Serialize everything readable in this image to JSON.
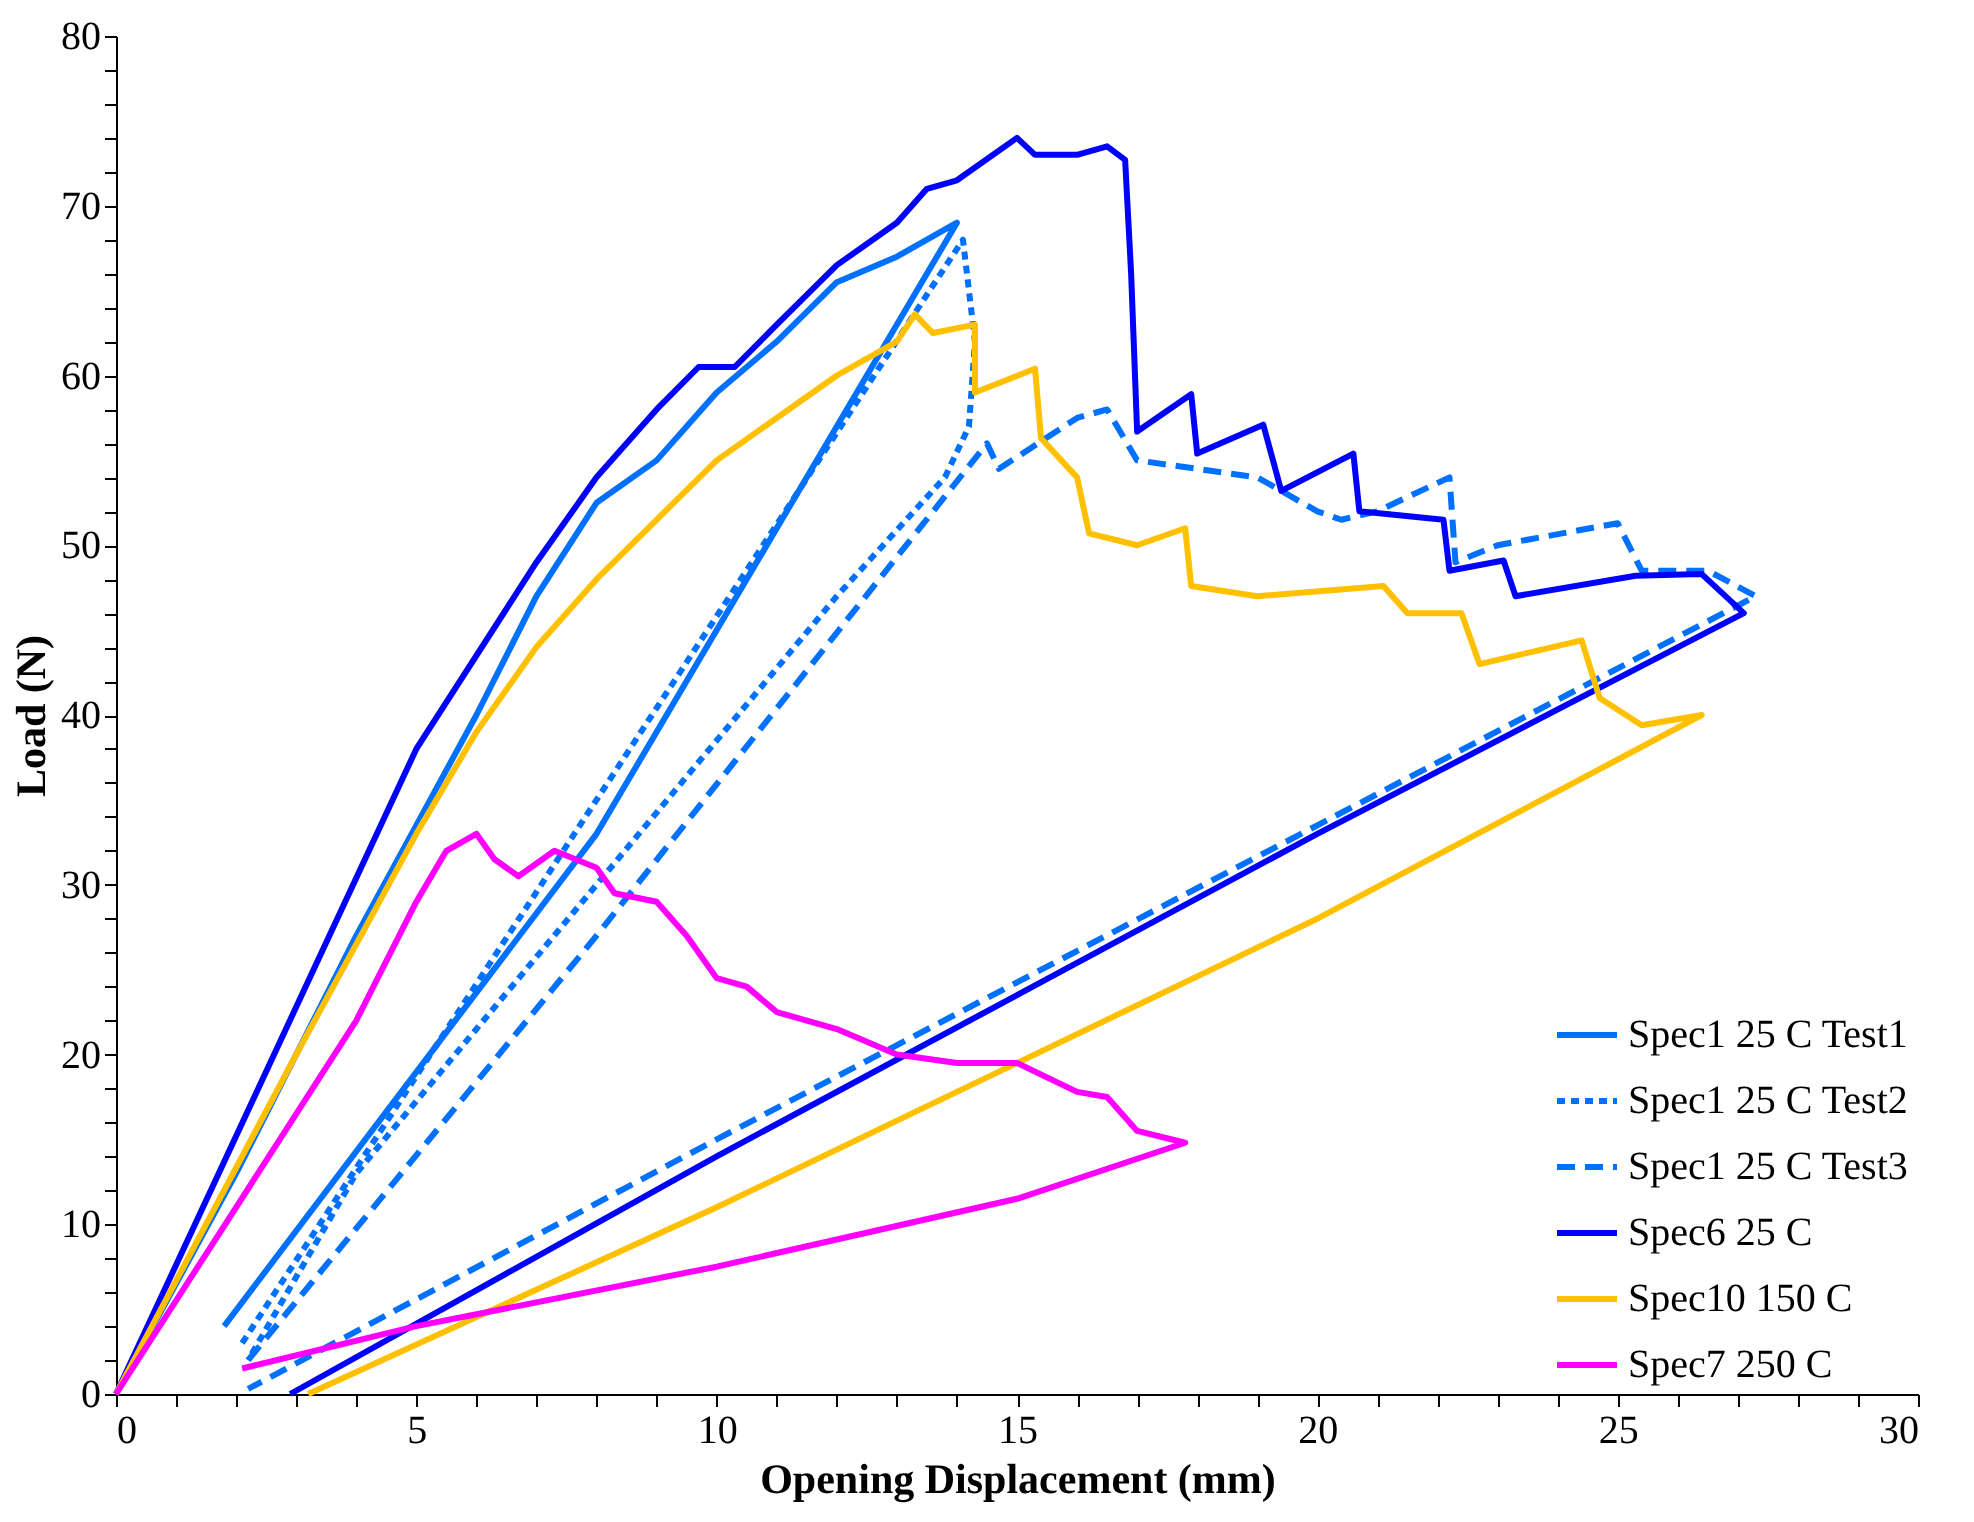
{
  "chart_data": {
    "type": "line",
    "xlabel": "Opening Displacement (mm)",
    "ylabel": "Load (N)",
    "xlim": [
      0,
      30
    ],
    "ylim": [
      0,
      80
    ],
    "xticks": [
      0,
      {
        "value": 1,
        "label": null
      },
      {
        "value": 2,
        "label": null
      },
      {
        "value": 3,
        "label": null
      },
      {
        "value": 4,
        "label": null
      },
      5,
      {
        "value": 6,
        "label": null
      },
      {
        "value": 7,
        "label": null
      },
      {
        "value": 8,
        "label": null
      },
      {
        "value": 9,
        "label": null
      },
      10,
      {
        "value": 11,
        "label": null
      },
      {
        "value": 12,
        "label": null
      },
      {
        "value": 13,
        "label": null
      },
      {
        "value": 14,
        "label": null
      },
      15,
      {
        "value": 16,
        "label": null
      },
      {
        "value": 17,
        "label": null
      },
      {
        "value": 18,
        "label": null
      },
      {
        "value": 19,
        "label": null
      },
      20,
      {
        "value": 21,
        "label": null
      },
      {
        "value": 22,
        "label": null
      },
      {
        "value": 23,
        "label": null
      },
      {
        "value": 24,
        "label": null
      },
      25,
      {
        "value": 26,
        "label": null
      },
      {
        "value": 27,
        "label": null
      },
      {
        "value": 28,
        "label": null
      },
      {
        "value": 29,
        "label": null
      },
      30
    ],
    "yticks": [
      0,
      {
        "value": 2,
        "label": null
      },
      {
        "value": 4,
        "label": null
      },
      {
        "value": 6,
        "label": null
      },
      {
        "value": 8,
        "label": null
      },
      10,
      {
        "value": 12,
        "label": null
      },
      {
        "value": 14,
        "label": null
      },
      {
        "value": 16,
        "label": null
      },
      {
        "value": 18,
        "label": null
      },
      20,
      {
        "value": 22,
        "label": null
      },
      {
        "value": 24,
        "label": null
      },
      {
        "value": 26,
        "label": null
      },
      {
        "value": 28,
        "label": null
      },
      30,
      {
        "value": 32,
        "label": null
      },
      {
        "value": 34,
        "label": null
      },
      {
        "value": 36,
        "label": null
      },
      {
        "value": 38,
        "label": null
      },
      40,
      {
        "value": 42,
        "label": null
      },
      {
        "value": 44,
        "label": null
      },
      {
        "value": 46,
        "label": null
      },
      {
        "value": 48,
        "label": null
      },
      50,
      {
        "value": 52,
        "label": null
      },
      {
        "value": 54,
        "label": null
      },
      {
        "value": 56,
        "label": null
      },
      {
        "value": 58,
        "label": null
      },
      60,
      {
        "value": 62,
        "label": null
      },
      {
        "value": 64,
        "label": null
      },
      {
        "value": 66,
        "label": null
      },
      {
        "value": 68,
        "label": null
      },
      70,
      {
        "value": 72,
        "label": null
      },
      {
        "value": 74,
        "label": null
      },
      {
        "value": 76,
        "label": null
      },
      {
        "value": 78,
        "label": null
      },
      80
    ],
    "grid": false,
    "legend": "bottom right",
    "marker": "none",
    "series": [
      {
        "name": "Spec1 25 C Test1",
        "color": "#0070ff",
        "line_style": "solid",
        "x": [
          0,
          2,
          4,
          6,
          7,
          8,
          9,
          10,
          11,
          12,
          13,
          14,
          8,
          1.8
        ],
        "values": [
          0,
          13,
          27,
          40,
          47,
          52.5,
          55,
          59,
          62,
          65.5,
          67,
          69,
          33,
          4
        ]
      },
      {
        "name": "Spec1 25 C Test2",
        "color": "#0070ff",
        "line_style": "dotted",
        "x": [
          2.1,
          8,
          14.1,
          14.3,
          14.2,
          13.8,
          12,
          8,
          4,
          2.2
        ],
        "values": [
          3,
          35,
          68,
          62,
          57,
          54,
          47,
          30,
          13,
          2
        ]
      },
      {
        "name": "Spec1 25 C Test3",
        "color": "#0070ff",
        "line_style": "dashed",
        "x": [
          2.2,
          8,
          14.5,
          14.7,
          16,
          16.5,
          17,
          18,
          19,
          20,
          20.4,
          21,
          22.2,
          22.3,
          23,
          25,
          25.4,
          26.5,
          27.3,
          20,
          10,
          2.2
        ],
        "values": [
          2,
          27,
          56,
          54.5,
          57.5,
          58,
          55,
          54.5,
          54,
          52,
          51.5,
          52,
          54,
          49,
          50,
          51.3,
          48.5,
          48.5,
          47,
          33.5,
          15,
          0.3
        ]
      },
      {
        "name": "Spec6 25 C",
        "color": "#0000ff",
        "line_style": "solid",
        "x": [
          0,
          5,
          7,
          8,
          9,
          9.7,
          10.3,
          11,
          12,
          13,
          13.5,
          14,
          15,
          15.3,
          16,
          16.5,
          16.8,
          16.9,
          17,
          17.9,
          18,
          19.1,
          19.4,
          20.6,
          20.7,
          22.1,
          22.2,
          23.1,
          23.3,
          25.3,
          26.4,
          27.1,
          20,
          10,
          2.9
        ],
        "values": [
          0,
          38,
          49,
          54,
          58,
          60.5,
          60.5,
          63,
          66.5,
          69,
          71,
          71.5,
          74,
          73,
          73,
          73.5,
          72.7,
          66,
          56.7,
          58.9,
          55.4,
          57.1,
          53.2,
          55.4,
          52,
          51.5,
          48.5,
          49.1,
          47,
          48.2,
          48.3,
          46,
          33,
          14,
          0
        ]
      },
      {
        "name": "Spec10 150 C",
        "color": "#ffc000",
        "line_style": "solid",
        "x": [
          0,
          3,
          5,
          6,
          7,
          8,
          9,
          10,
          11,
          12,
          13,
          13.3,
          13.6,
          14.3,
          14.3,
          15.3,
          15.4,
          16,
          16.2,
          17,
          17.8,
          17.9,
          19,
          21.1,
          21.5,
          22.4,
          22.7,
          24.4,
          24.7,
          25.4,
          26.4,
          20,
          10,
          3.2
        ],
        "values": [
          0,
          20,
          33,
          39,
          44,
          48,
          51.5,
          55,
          57.5,
          60,
          62,
          63.6,
          62.5,
          63,
          59,
          60.4,
          56.3,
          54,
          50.7,
          50,
          51,
          47.6,
          47,
          47.6,
          46,
          46,
          43,
          44.4,
          41,
          39.4,
          40,
          28,
          11,
          0
        ]
      },
      {
        "name": "Spec7 250 C",
        "color": "#ff00ff",
        "line_style": "solid",
        "x": [
          0,
          2,
          4,
          5,
          5.5,
          6,
          6.3,
          6.7,
          7.3,
          8,
          8.3,
          9,
          9.5,
          10,
          10.5,
          11,
          12,
          13,
          14,
          15,
          16,
          16.5,
          17,
          17.8,
          15,
          10,
          5,
          2.1
        ],
        "values": [
          0,
          11,
          22,
          29,
          32,
          33,
          31.5,
          30.5,
          32,
          31,
          29.5,
          29,
          27,
          24.5,
          24,
          22.5,
          21.5,
          20,
          19.5,
          19.5,
          17.8,
          17.5,
          15.5,
          14.8,
          11.5,
          7.5,
          4,
          1.5
        ]
      }
    ]
  }
}
